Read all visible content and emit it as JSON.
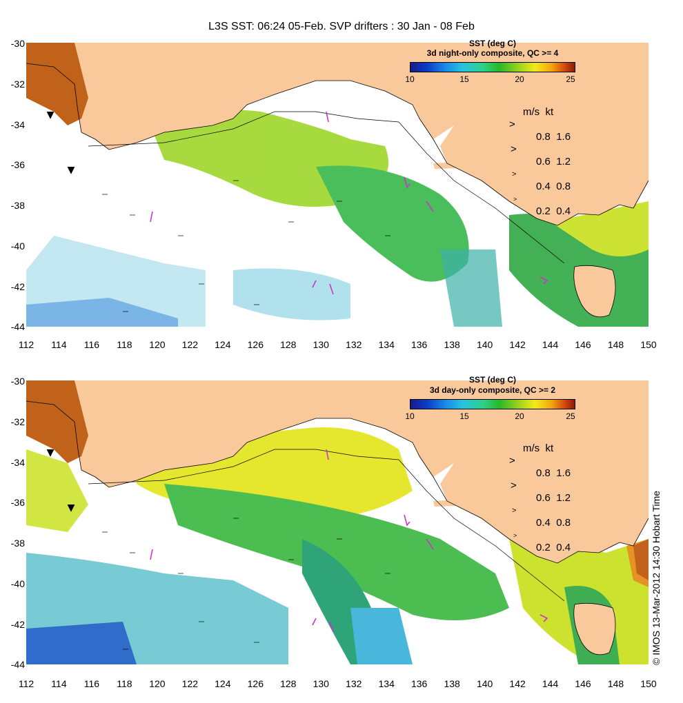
{
  "title": "L3S SST: 06:24 05-Feb. SVP drifters : 30 Jan - 08 Feb",
  "credit": "© IMOS 13-Mar-2012 14:30 Hobart Time",
  "colors": {
    "land": "#f9c99b",
    "ocean": "#ffffff",
    "drifter": "#cc33cc",
    "contour": "#000000"
  },
  "y_ticks": [
    "-30",
    "-32",
    "-34",
    "-36",
    "-38",
    "-40",
    "-42",
    "-44"
  ],
  "x_ticks": [
    "112",
    "114",
    "116",
    "118",
    "120",
    "122",
    "124",
    "126",
    "128",
    "130",
    "132",
    "134",
    "136",
    "138",
    "140",
    "142",
    "144",
    "146",
    "148",
    "150"
  ],
  "panels": [
    {
      "colorbar_title_1": "SST (deg C)",
      "colorbar_title_2": "3d night-only composite, QC >= 4",
      "colorbar_ticks": [
        "10",
        "15",
        "20",
        "25"
      ],
      "legend_header": "m/s  kt",
      "legend_rows": [
        "0.8  1.6",
        "0.6  1.2",
        "0.4  0.8",
        "0.2  0.4"
      ]
    },
    {
      "colorbar_title_1": "SST (deg C)",
      "colorbar_title_2": "3d day-only composite, QC >= 2",
      "colorbar_ticks": [
        "10",
        "15",
        "20",
        "25"
      ],
      "legend_header": "m/s  kt",
      "legend_rows": [
        "0.8  1.6",
        "0.6  1.2",
        "0.4  0.8",
        "0.2  0.4"
      ]
    }
  ]
}
